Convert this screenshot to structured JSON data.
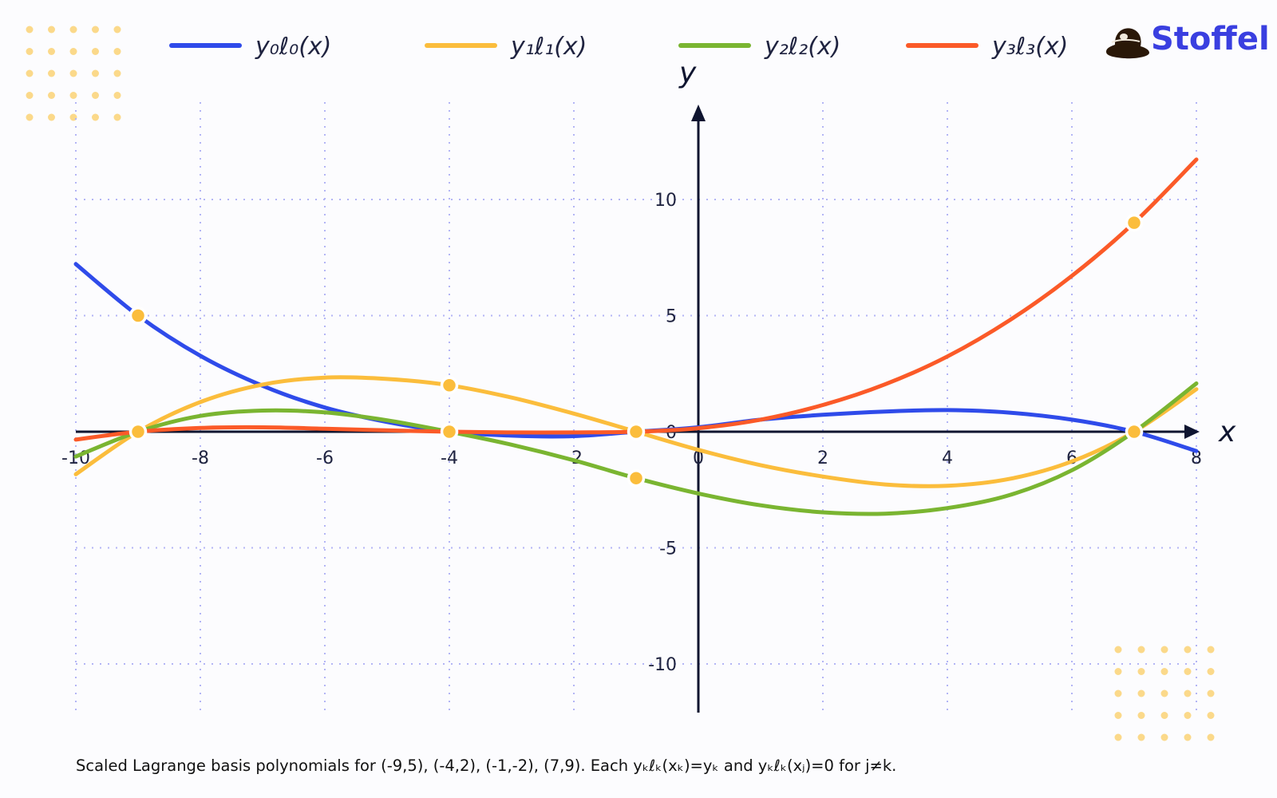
{
  "brand": {
    "name": "Stoffel",
    "color": "#3a3fe0"
  },
  "caption": "Scaled Lagrange basis polynomials for (-9,5), (-4,2), (-1,-2), (7,9). Each yₖℓₖ(xₖ)=yₖ and yₖℓₖ(xⱼ)=0 for j≠k.",
  "chart_data": {
    "type": "line",
    "title": "",
    "xlabel": "x",
    "ylabel": "y",
    "xlim": [
      -10,
      8
    ],
    "ylim": [
      -12,
      14
    ],
    "x_ticks": [
      "-10",
      "-8",
      "-6",
      "-4",
      "-2",
      "0",
      "2",
      "4",
      "6",
      "8"
    ],
    "y_ticks": [
      "-10",
      "-5",
      "0",
      "5",
      "10"
    ],
    "grid": true,
    "legend_position": "top",
    "nodes": [
      {
        "x": -9,
        "y": 5
      },
      {
        "x": -4,
        "y": 2
      },
      {
        "x": -1,
        "y": -2
      },
      {
        "x": 7,
        "y": 9
      }
    ],
    "series": [
      {
        "name": "y₀ℓ₀(x)",
        "color": "#2f4bea",
        "x": [
          -10,
          -9,
          -8,
          -7,
          -6,
          -5,
          -4,
          -3,
          -2,
          -1,
          0,
          1,
          2,
          3,
          4,
          5,
          6,
          7,
          8
        ],
        "y": [
          7.22,
          5.0,
          3.27,
          1.98,
          1.04,
          0.42,
          0.0,
          -0.17,
          -0.19,
          0.0,
          0.19,
          0.52,
          0.73,
          0.87,
          0.93,
          0.82,
          0.52,
          0.0,
          -0.83
        ]
      },
      {
        "name": "y₁ℓ₁(x)",
        "color": "#fbbd3c",
        "x": [
          -10,
          -9,
          -8,
          -7,
          -6,
          -5,
          -4,
          -3,
          -2,
          -1,
          0,
          1,
          2,
          3,
          4,
          5,
          6,
          7,
          8
        ],
        "y": [
          -1.83,
          0.0,
          1.28,
          2.03,
          2.33,
          2.27,
          2.0,
          1.47,
          0.78,
          0.0,
          -0.78,
          -1.44,
          -1.93,
          -2.27,
          -2.33,
          -2.03,
          -1.28,
          0.0,
          1.83
        ]
      },
      {
        "name": "y₂ℓ₂(x)",
        "color": "#7ab531",
        "x": [
          -10,
          -9,
          -8,
          -7,
          -6,
          -5,
          -4,
          -3,
          -2,
          -1,
          0,
          1,
          2,
          3,
          4,
          5,
          6,
          7,
          8
        ],
        "y": [
          -1.07,
          0.0,
          0.68,
          0.91,
          0.83,
          0.49,
          0.0,
          -0.56,
          -1.23,
          -2.0,
          -2.66,
          -3.17,
          -3.47,
          -3.53,
          -3.29,
          -2.73,
          -1.66,
          0.0,
          2.08
        ]
      },
      {
        "name": "y₃ℓ₃(x)",
        "color": "#fb5a28",
        "x": [
          -10,
          -9,
          -8,
          -7,
          -6,
          -5,
          -4,
          -3,
          -2,
          -1,
          0,
          1,
          2,
          3,
          4,
          5,
          6,
          7,
          8
        ],
        "y": [
          -0.34,
          0.0,
          0.16,
          0.19,
          0.13,
          0.06,
          0.0,
          -0.03,
          -0.03,
          0.0,
          0.15,
          0.52,
          1.15,
          2.04,
          3.24,
          4.8,
          6.71,
          9.0,
          11.72
        ]
      }
    ]
  }
}
